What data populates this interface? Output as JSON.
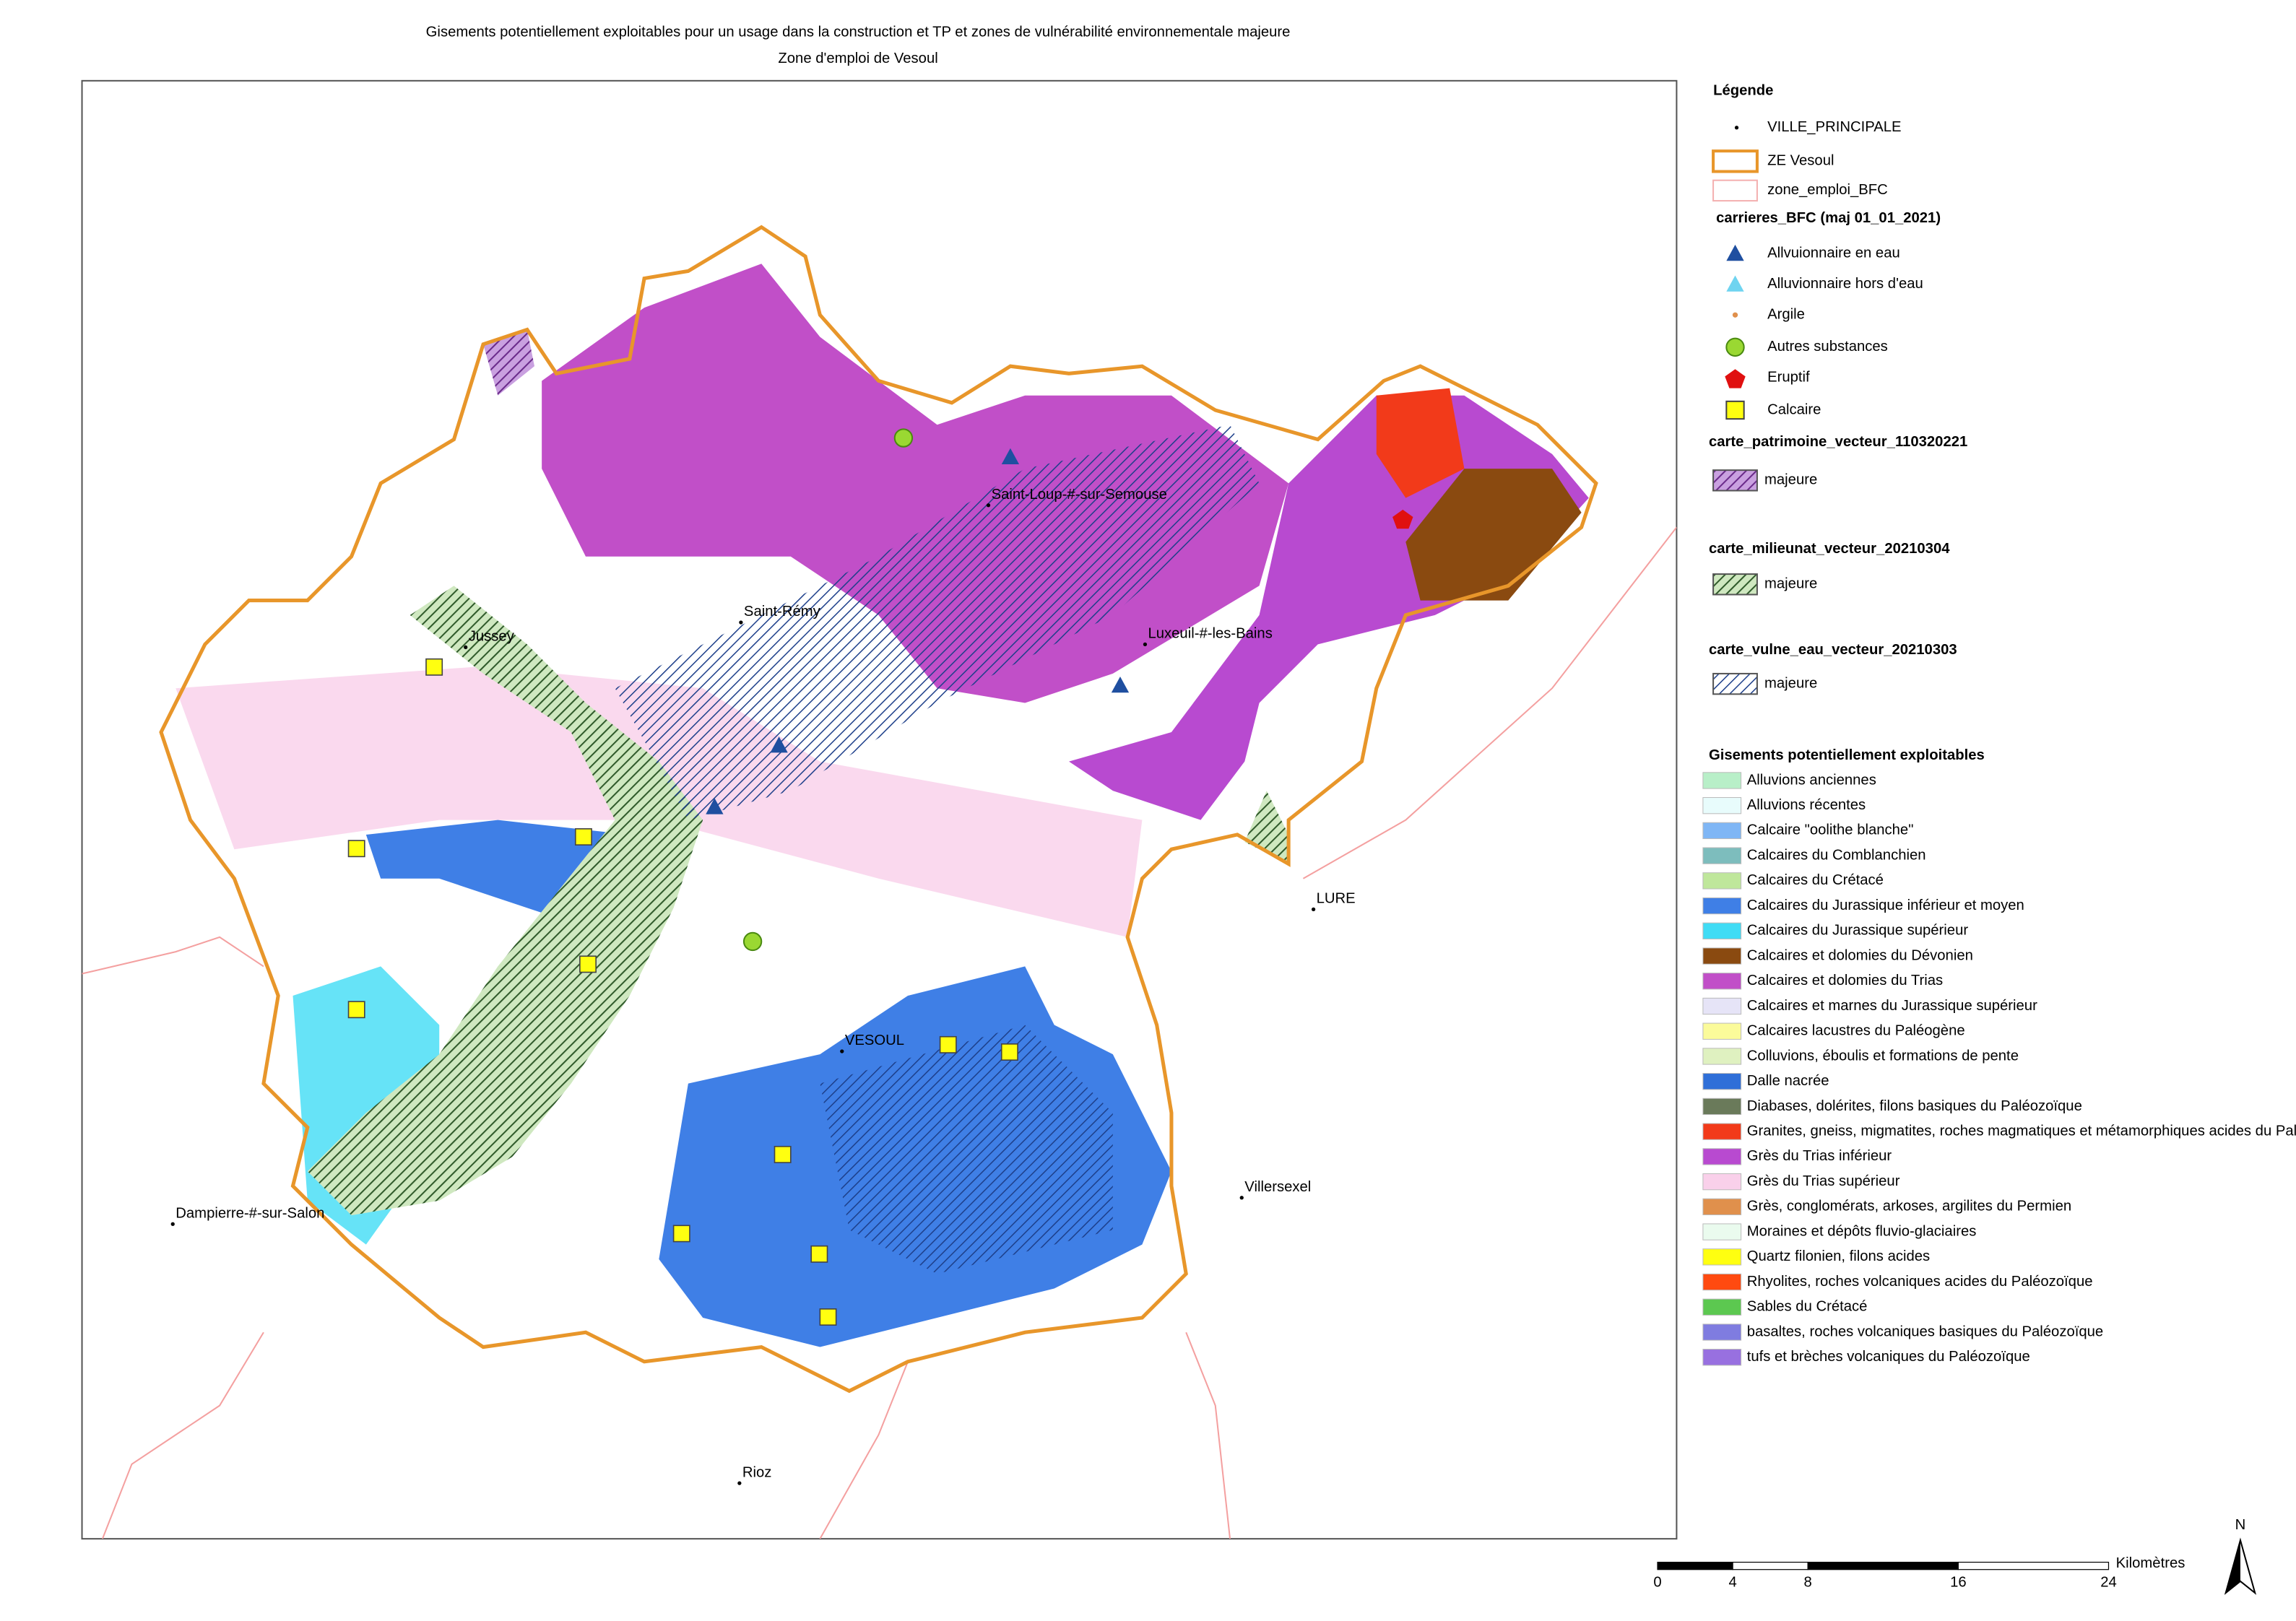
{
  "title": [
    "Gisements potentiellement exploitables pour un usage dans la construction et TP et zones de vulnérabilité environnementale majeure",
    "Zone d'emploi de Vesoul"
  ],
  "legend": {
    "heading": "Légende",
    "base": [
      "VILLE_PRINCIPALE",
      "ZE Vesoul",
      "zone_emploi_BFC"
    ],
    "carrieres": {
      "title": "carrieres_BFC (maj 01_01_2021)",
      "items": [
        "Allvuionnaire en eau",
        "Alluvionnaire hors d'eau",
        "Argile",
        "Autres substances",
        "Eruptif",
        "Calcaire"
      ]
    },
    "patrimoine": {
      "title": "carte_patrimoine_vecteur_110320221",
      "item": "majeure"
    },
    "milieunat": {
      "title": "carte_milieunat_vecteur_20210304",
      "item": "majeure"
    },
    "vulne": {
      "title": "carte_vulne_eau_vecteur_20210303",
      "item": "majeure"
    },
    "gisements": {
      "title": "Gisements potentiellement exploitables",
      "items": [
        {
          "label": "Alluvions anciennes",
          "color": "#b8efc8"
        },
        {
          "label": "Alluvions récentes",
          "color": "#e8fcfc"
        },
        {
          "label": "Calcaire \"oolithe blanche\"",
          "color": "#7fb6f5"
        },
        {
          "label": "Calcaires du Comblanchien",
          "color": "#7dbdbd"
        },
        {
          "label": "Calcaires du Crétacé",
          "color": "#bfe79b"
        },
        {
          "label": "Calcaires du Jurassique inférieur et moyen",
          "color": "#3f7fe6"
        },
        {
          "label": "Calcaires du Jurassique supérieur",
          "color": "#40dcf5"
        },
        {
          "label": "Calcaires et dolomies du Dévonien",
          "color": "#8a4a10"
        },
        {
          "label": "Calcaires et dolomies du Trias",
          "color": "#c14fc8"
        },
        {
          "label": "Calcaires et marnes du Jurassique supérieur",
          "color": "#e6e4f7"
        },
        {
          "label": "Calcaires lacustres du Paléogène",
          "color": "#fbfb9a"
        },
        {
          "label": "Colluvions, éboulis et formations de pente",
          "color": "#dff1c0"
        },
        {
          "label": "Dalle nacrée",
          "color": "#2f6fd8"
        },
        {
          "label": "Diabases, dolérites, filons basiques du Paléozoïque",
          "color": "#6a7a5a"
        },
        {
          "label": "Granites, gneiss, migmatites, roches magmatiques et métamorphiques acides du Paléozoïque",
          "color": "#f23a1a"
        },
        {
          "label": "Grès du Trias inférieur",
          "color": "#b84ad0"
        },
        {
          "label": "Grès du Trias supérieur",
          "color": "#f9d0ea"
        },
        {
          "label": "Grès, conglomérats, arkoses, argilites du Permien",
          "color": "#e0904c"
        },
        {
          "label": "Moraines et dépôts fluvio-glaciaires",
          "color": "#eafbee"
        },
        {
          "label": "Quartz filonien, filons acides",
          "color": "#ffff10"
        },
        {
          "label": "Rhyolites, roches volcaniques acides du Paléozoïque",
          "color": "#ff4a10"
        },
        {
          "label": "Sables du Crétacé",
          "color": "#5cc850"
        },
        {
          "label": "basaltes, roches volcaniques basiques du Paléozoïque",
          "color": "#7f7ce0"
        },
        {
          "label": "tufs et brèches volcaniques du Paléozoïque",
          "color": "#9870e0"
        }
      ]
    }
  },
  "cities": [
    "Saint-Loup-#-sur-Semouse",
    "Saint-Rémy",
    "Jussey",
    "Luxeuil-#-les-Bains",
    "LURE",
    "VESOUL",
    "Villersexel",
    "Dampierre-#-sur-Salon",
    "Rioz"
  ],
  "scale": {
    "ticks": [
      0,
      4,
      8,
      16,
      24
    ],
    "unit": "Kilomètres"
  },
  "north": "N"
}
